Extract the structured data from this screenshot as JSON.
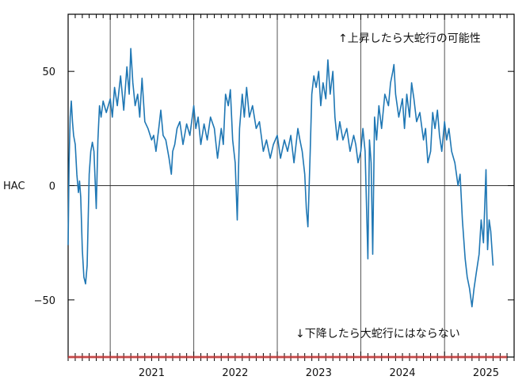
{
  "chart_data": {
    "type": "line",
    "title": "",
    "xlabel": "",
    "ylabel": "HAC",
    "xlim": [
      "2020-07-01",
      "2025-11-01"
    ],
    "ylim": [
      -75,
      75
    ],
    "yticks": [
      -50,
      0,
      50
    ],
    "ytick_labels": [
      "−50",
      "0",
      "50"
    ],
    "xtick_labels": [
      "2021",
      "2022",
      "2023",
      "2024",
      "2025"
    ],
    "year_boundaries": [
      "2021-01-01",
      "2022-01-01",
      "2023-01-01",
      "2024-01-01",
      "2025-01-01"
    ],
    "grid": "year boundaries and zero line",
    "series_color": "#1f77b4",
    "threshold_color": "#e04040",
    "threshold": {
      "y": -75,
      "x_start": "2020-07-01",
      "x_end": "2025-10-01"
    },
    "annotations": {
      "upper": "↑上昇したら大蛇行の可能性",
      "lower": "↓下降したら大蛇行にはならない"
    },
    "series": [
      {
        "values": [
          [
            "2020-07-01",
            -26
          ],
          [
            "2020-07-05",
            10
          ],
          [
            "2020-07-10",
            30
          ],
          [
            "2020-07-15",
            37
          ],
          [
            "2020-07-20",
            28
          ],
          [
            "2020-07-25",
            22
          ],
          [
            "2020-08-01",
            18
          ],
          [
            "2020-08-08",
            5
          ],
          [
            "2020-08-15",
            -3
          ],
          [
            "2020-08-20",
            2
          ],
          [
            "2020-08-25",
            -5
          ],
          [
            "2020-09-01",
            -28
          ],
          [
            "2020-09-08",
            -40
          ],
          [
            "2020-09-15",
            -43
          ],
          [
            "2020-09-22",
            -35
          ],
          [
            "2020-10-01",
            5
          ],
          [
            "2020-10-08",
            15
          ],
          [
            "2020-10-15",
            19
          ],
          [
            "2020-10-22",
            15
          ],
          [
            "2020-11-01",
            -10
          ],
          [
            "2020-11-08",
            20
          ],
          [
            "2020-11-15",
            35
          ],
          [
            "2020-11-22",
            30
          ],
          [
            "2020-12-01",
            37
          ],
          [
            "2020-12-15",
            32
          ],
          [
            "2021-01-01",
            38
          ],
          [
            "2021-01-10",
            30
          ],
          [
            "2021-01-20",
            43
          ],
          [
            "2021-02-01",
            35
          ],
          [
            "2021-02-15",
            48
          ],
          [
            "2021-03-01",
            33
          ],
          [
            "2021-03-15",
            52
          ],
          [
            "2021-03-25",
            40
          ],
          [
            "2021-04-01",
            60
          ],
          [
            "2021-04-10",
            45
          ],
          [
            "2021-04-20",
            35
          ],
          [
            "2021-05-01",
            40
          ],
          [
            "2021-05-10",
            30
          ],
          [
            "2021-05-20",
            47
          ],
          [
            "2021-06-01",
            28
          ],
          [
            "2021-06-15",
            25
          ],
          [
            "2021-07-01",
            20
          ],
          [
            "2021-07-10",
            22
          ],
          [
            "2021-07-20",
            15
          ],
          [
            "2021-08-01",
            25
          ],
          [
            "2021-08-10",
            33
          ],
          [
            "2021-08-20",
            22
          ],
          [
            "2021-09-01",
            20
          ],
          [
            "2021-09-15",
            12
          ],
          [
            "2021-09-25",
            5
          ],
          [
            "2021-10-01",
            15
          ],
          [
            "2021-10-10",
            18
          ],
          [
            "2021-10-20",
            25
          ],
          [
            "2021-11-01",
            28
          ],
          [
            "2021-11-15",
            18
          ],
          [
            "2021-12-01",
            27
          ],
          [
            "2021-12-15",
            22
          ],
          [
            "2022-01-01",
            35
          ],
          [
            "2022-01-10",
            25
          ],
          [
            "2022-01-20",
            30
          ],
          [
            "2022-02-01",
            18
          ],
          [
            "2022-02-15",
            27
          ],
          [
            "2022-03-01",
            20
          ],
          [
            "2022-03-15",
            30
          ],
          [
            "2022-04-01",
            25
          ],
          [
            "2022-04-15",
            12
          ],
          [
            "2022-05-01",
            25
          ],
          [
            "2022-05-10",
            18
          ],
          [
            "2022-05-20",
            40
          ],
          [
            "2022-06-01",
            35
          ],
          [
            "2022-06-10",
            42
          ],
          [
            "2022-06-20",
            20
          ],
          [
            "2022-07-01",
            10
          ],
          [
            "2022-07-10",
            -15
          ],
          [
            "2022-07-20",
            25
          ],
          [
            "2022-08-01",
            40
          ],
          [
            "2022-08-10",
            30
          ],
          [
            "2022-08-20",
            43
          ],
          [
            "2022-09-01",
            30
          ],
          [
            "2022-09-15",
            35
          ],
          [
            "2022-10-01",
            25
          ],
          [
            "2022-10-15",
            28
          ],
          [
            "2022-11-01",
            15
          ],
          [
            "2022-11-15",
            20
          ],
          [
            "2022-12-01",
            12
          ],
          [
            "2022-12-15",
            18
          ],
          [
            "2023-01-01",
            22
          ],
          [
            "2023-01-15",
            12
          ],
          [
            "2023-02-01",
            20
          ],
          [
            "2023-02-15",
            15
          ],
          [
            "2023-03-01",
            22
          ],
          [
            "2023-03-15",
            10
          ],
          [
            "2023-04-01",
            25
          ],
          [
            "2023-04-10",
            20
          ],
          [
            "2023-04-20",
            15
          ],
          [
            "2023-05-01",
            5
          ],
          [
            "2023-05-08",
            -10
          ],
          [
            "2023-05-15",
            -18
          ],
          [
            "2023-05-25",
            15
          ],
          [
            "2023-06-01",
            40
          ],
          [
            "2023-06-10",
            48
          ],
          [
            "2023-06-20",
            43
          ],
          [
            "2023-07-01",
            50
          ],
          [
            "2023-07-10",
            35
          ],
          [
            "2023-07-20",
            45
          ],
          [
            "2023-08-01",
            38
          ],
          [
            "2023-08-10",
            55
          ],
          [
            "2023-08-20",
            40
          ],
          [
            "2023-09-01",
            50
          ],
          [
            "2023-09-10",
            30
          ],
          [
            "2023-09-20",
            20
          ],
          [
            "2023-10-01",
            28
          ],
          [
            "2023-10-15",
            20
          ],
          [
            "2023-11-01",
            25
          ],
          [
            "2023-11-15",
            15
          ],
          [
            "2023-12-01",
            22
          ],
          [
            "2023-12-10",
            18
          ],
          [
            "2023-12-20",
            10
          ],
          [
            "2024-01-01",
            15
          ],
          [
            "2024-01-10",
            25
          ],
          [
            "2024-01-20",
            15
          ],
          [
            "2024-02-01",
            -32
          ],
          [
            "2024-02-08",
            20
          ],
          [
            "2024-02-15",
            10
          ],
          [
            "2024-02-22",
            -30
          ],
          [
            "2024-03-01",
            30
          ],
          [
            "2024-03-10",
            20
          ],
          [
            "2024-03-20",
            35
          ],
          [
            "2024-04-01",
            25
          ],
          [
            "2024-04-15",
            40
          ],
          [
            "2024-05-01",
            35
          ],
          [
            "2024-05-10",
            45
          ],
          [
            "2024-05-20",
            50
          ],
          [
            "2024-05-25",
            53
          ],
          [
            "2024-06-01",
            40
          ],
          [
            "2024-06-15",
            30
          ],
          [
            "2024-07-01",
            38
          ],
          [
            "2024-07-10",
            25
          ],
          [
            "2024-07-20",
            40
          ],
          [
            "2024-08-01",
            30
          ],
          [
            "2024-08-10",
            45
          ],
          [
            "2024-08-20",
            38
          ],
          [
            "2024-09-01",
            28
          ],
          [
            "2024-09-15",
            32
          ],
          [
            "2024-10-01",
            20
          ],
          [
            "2024-10-10",
            25
          ],
          [
            "2024-10-20",
            10
          ],
          [
            "2024-11-01",
            15
          ],
          [
            "2024-11-10",
            32
          ],
          [
            "2024-11-20",
            25
          ],
          [
            "2024-12-01",
            33
          ],
          [
            "2024-12-10",
            22
          ],
          [
            "2024-12-20",
            15
          ],
          [
            "2025-01-01",
            28
          ],
          [
            "2025-01-10",
            20
          ],
          [
            "2025-01-20",
            25
          ],
          [
            "2025-02-01",
            15
          ],
          [
            "2025-02-15",
            10
          ],
          [
            "2025-03-01",
            0
          ],
          [
            "2025-03-10",
            5
          ],
          [
            "2025-03-20",
            -15
          ],
          [
            "2025-04-01",
            -32
          ],
          [
            "2025-04-10",
            -40
          ],
          [
            "2025-04-20",
            -45
          ],
          [
            "2025-05-01",
            -53
          ],
          [
            "2025-05-10",
            -45
          ],
          [
            "2025-05-20",
            -38
          ],
          [
            "2025-06-01",
            -30
          ],
          [
            "2025-06-10",
            -15
          ],
          [
            "2025-06-20",
            -25
          ],
          [
            "2025-07-01",
            7
          ],
          [
            "2025-07-08",
            -28
          ],
          [
            "2025-07-15",
            -15
          ],
          [
            "2025-07-22",
            -20
          ],
          [
            "2025-08-01",
            -35
          ]
        ]
      }
    ]
  }
}
